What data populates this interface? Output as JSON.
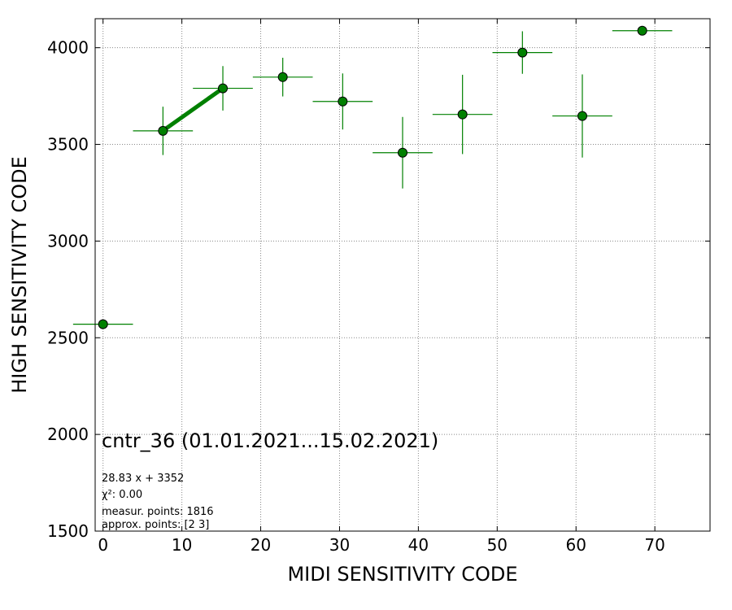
{
  "chart_data": {
    "type": "scatter",
    "xlabel": "MIDI SENSITIVITY CODE",
    "ylabel": "HIGH SENSITIVITY CODE",
    "xlim": [
      -1,
      77
    ],
    "ylim": [
      1500,
      4150
    ],
    "xticks": [
      0,
      10,
      20,
      30,
      40,
      50,
      60,
      70
    ],
    "yticks": [
      1500,
      2000,
      2500,
      3000,
      3500,
      4000
    ],
    "grid": true,
    "colors": {
      "point_fill": "#008000",
      "errorbar": "#008000",
      "fit_line": "#008000",
      "point_edge": "#000000"
    },
    "points": [
      {
        "x": 0.0,
        "y": 2570,
        "xerr": 3.8,
        "yerr": 0
      },
      {
        "x": 7.6,
        "y": 3570,
        "xerr": 3.8,
        "yerr": 125
      },
      {
        "x": 15.2,
        "y": 3790,
        "xerr": 3.8,
        "yerr": 115
      },
      {
        "x": 22.8,
        "y": 3848,
        "xerr": 3.8,
        "yerr": 100
      },
      {
        "x": 30.4,
        "y": 3722,
        "xerr": 3.8,
        "yerr": 145
      },
      {
        "x": 38.0,
        "y": 3457,
        "xerr": 3.8,
        "yerr": 185
      },
      {
        "x": 45.6,
        "y": 3655,
        "xerr": 3.8,
        "yerr": 205
      },
      {
        "x": 53.2,
        "y": 3975,
        "xerr": 3.8,
        "yerr": 110
      },
      {
        "x": 60.8,
        "y": 3647,
        "xerr": 3.8,
        "yerr": 215
      },
      {
        "x": 68.4,
        "y": 4088,
        "xerr": 3.8,
        "yerr": 0
      }
    ],
    "fit_line": {
      "x": [
        7.6,
        15.2
      ],
      "y": [
        3571,
        3790
      ]
    },
    "annotations": {
      "title": "cntr_36 (01.01.2021...15.02.2021)",
      "equation": "28.83 x + 3352",
      "chi2": "χ²: 0.00",
      "measur_points": "measur. points: 1816",
      "approx_points": "approx. points: [2 3]"
    }
  }
}
